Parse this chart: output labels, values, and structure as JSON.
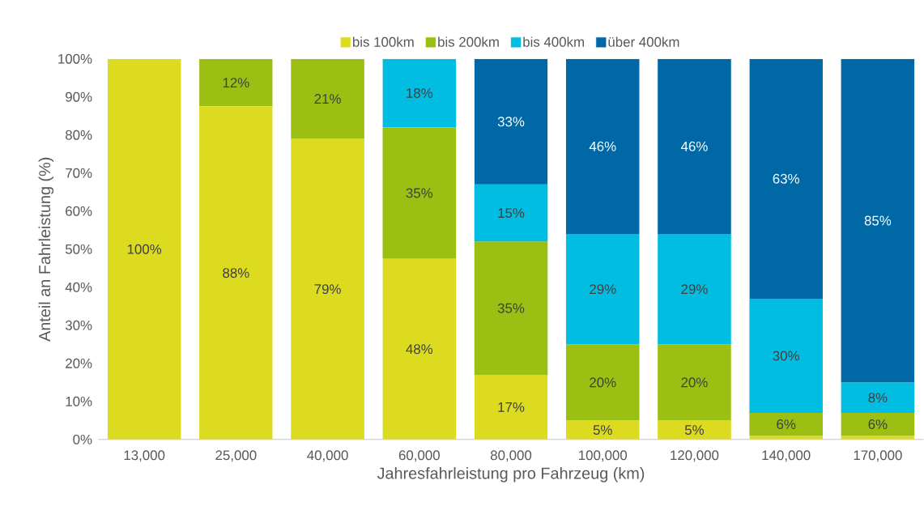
{
  "chart_data": {
    "type": "bar",
    "stacked": true,
    "xlabel": "Jahresfahrleistung pro Fahrzeug (km)",
    "ylabel": "Anteil an Fahrleistung (%)",
    "categories": [
      "13,000",
      "25,000",
      "40,000",
      "60,000",
      "80,000",
      "100,000",
      "120,000",
      "140,000",
      "170,000"
    ],
    "series": [
      {
        "name": "bis 100km",
        "color": "#dcdb20",
        "values": [
          100,
          87.5,
          79,
          47.5,
          17,
          5,
          5,
          1,
          1
        ],
        "value_labels": [
          "100%",
          "88%",
          "79%",
          "48%",
          "17%",
          "5%",
          "5%",
          null,
          null
        ]
      },
      {
        "name": "bis 200km",
        "color": "#9bbf13",
        "values": [
          null,
          12.5,
          21,
          34.5,
          35,
          20,
          20,
          6,
          6
        ],
        "value_labels": [
          null,
          "12%",
          "21%",
          "35%",
          "35%",
          "20%",
          "20%",
          "6%",
          "6%"
        ]
      },
      {
        "name": "bis 400km",
        "color": "#00bde1",
        "values": [
          null,
          null,
          null,
          18,
          15,
          29,
          29,
          30,
          8
        ],
        "value_labels": [
          null,
          null,
          null,
          "18%",
          "15%",
          "29%",
          "29%",
          "30%",
          "8%"
        ]
      },
      {
        "name": "über 400km",
        "color": "#0069a5",
        "values": [
          null,
          null,
          null,
          null,
          33,
          46,
          46,
          63,
          85
        ],
        "value_labels": [
          null,
          null,
          null,
          null,
          "33%",
          "46%",
          "46%",
          "63%",
          "85%"
        ]
      }
    ],
    "ylim": [
      0,
      100
    ],
    "yticks": [
      {
        "value": 0,
        "label": "0%"
      },
      {
        "value": 10,
        "label": "10%"
      },
      {
        "value": 20,
        "label": "20%"
      },
      {
        "value": 30,
        "label": "30%"
      },
      {
        "value": 40,
        "label": "40%"
      },
      {
        "value": 50,
        "label": "50%"
      },
      {
        "value": 60,
        "label": "60%"
      },
      {
        "value": 70,
        "label": "70%"
      },
      {
        "value": 80,
        "label": "80%"
      },
      {
        "value": 90,
        "label": "90%"
      },
      {
        "value": 100,
        "label": "100%"
      }
    ],
    "legend": "top"
  }
}
